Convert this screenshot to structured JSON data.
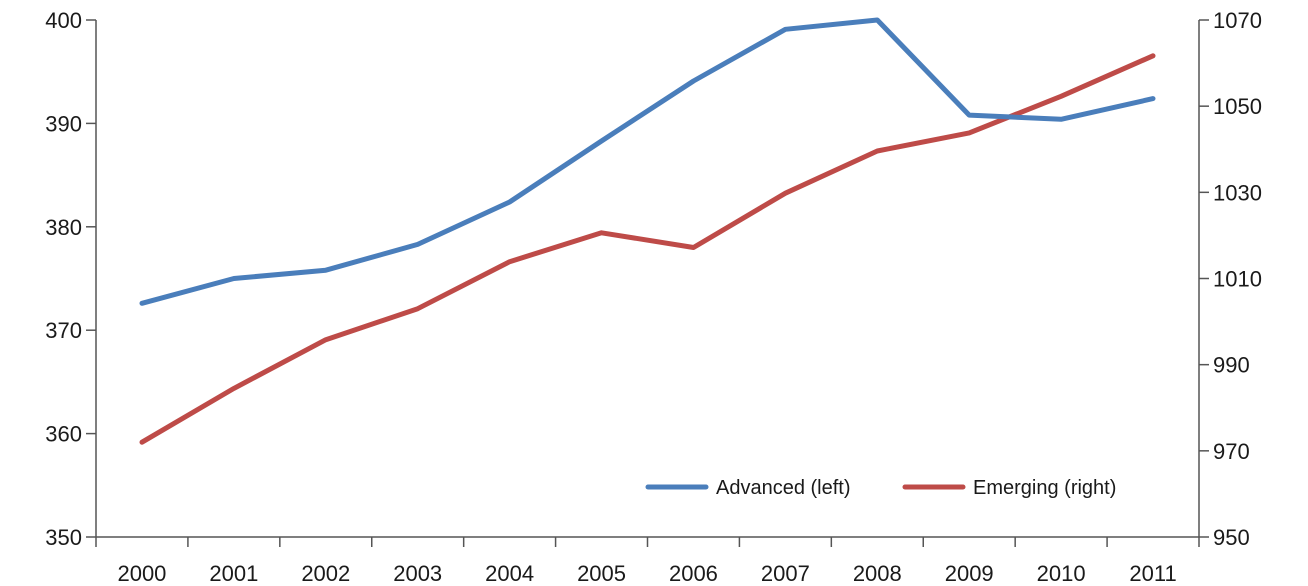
{
  "chart_data": {
    "type": "line",
    "title": "",
    "x": [
      "2000",
      "2001",
      "2002",
      "2003",
      "2004",
      "2005",
      "2006",
      "2007",
      "2008",
      "2009",
      "2010",
      "2011"
    ],
    "y_left": {
      "label": "",
      "ylim": [
        350,
        400
      ],
      "ticks": [
        350,
        360,
        370,
        380,
        390,
        400
      ]
    },
    "y_right": {
      "label": "",
      "ylim": [
        950,
        1070
      ],
      "ticks": [
        950,
        970,
        990,
        1010,
        1030,
        1050,
        1070
      ]
    },
    "series": [
      {
        "name": "Advanced (left)",
        "axis": "left",
        "color": "#4a7ebb",
        "values": [
          372.6,
          375.0,
          375.8,
          378.3,
          382.4,
          388.3,
          394.1,
          399.1,
          400.0,
          390.8,
          390.4,
          392.4
        ]
      },
      {
        "name": "Emerging (right)",
        "axis": "right",
        "color": "#be4b48",
        "values": [
          972.0,
          984.5,
          995.8,
          1003.0,
          1013.9,
          1020.6,
          1017.2,
          1029.8,
          1039.6,
          1043.8,
          1052.3,
          1061.7
        ]
      }
    ],
    "grid": false,
    "legend": {
      "placement": "bottom-right"
    }
  }
}
